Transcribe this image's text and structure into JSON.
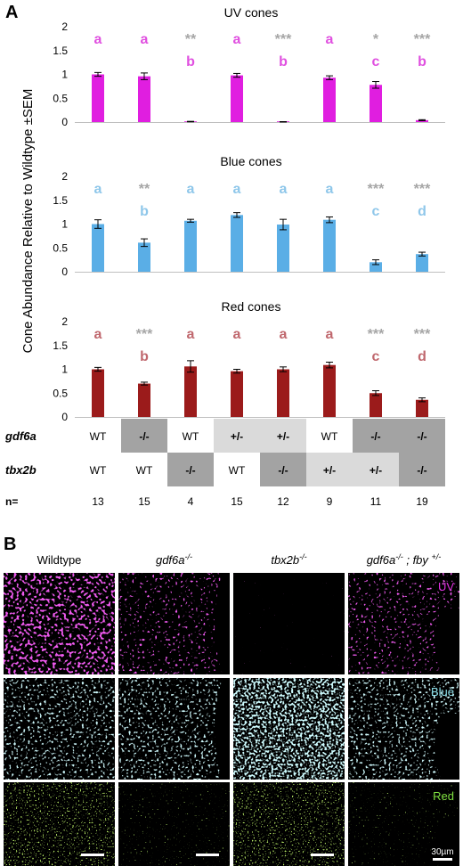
{
  "panel_a_letter": "A",
  "panel_b_letter": "B",
  "y_axis_label": "Cone Abundance Relative to Wildtype ±SEM",
  "colors": {
    "uv": "#e01ee0",
    "blue": "#5aaee6",
    "red": "#9b1b1b",
    "uv_letter": "#e050e0",
    "blue_letter": "#8fc7ea",
    "red_letter": "#c0686e",
    "sig": "#a6a6a6",
    "cell_dark": "#a3a3a3",
    "cell_light": "#dadada"
  },
  "chart_data": [
    {
      "type": "bar",
      "title": "UV cones",
      "ylim": [
        0,
        2
      ],
      "yticks": [
        "0",
        "0.5",
        "1",
        "1.5",
        "2"
      ],
      "values": [
        1.0,
        0.96,
        0.01,
        0.98,
        0.005,
        0.93,
        0.78,
        0.04
      ],
      "errors": [
        0.04,
        0.07,
        0.005,
        0.04,
        0.004,
        0.04,
        0.07,
        0.01
      ],
      "letters": [
        "a",
        "a",
        "b",
        "a",
        "b",
        "a",
        "c",
        "b"
      ],
      "sig": [
        "",
        "",
        "**",
        "",
        "***",
        "",
        "*",
        "***"
      ]
    },
    {
      "type": "bar",
      "title": "Blue cones",
      "ylim": [
        0,
        2
      ],
      "yticks": [
        "0",
        "0.5",
        "1",
        "1.5",
        "2"
      ],
      "values": [
        1.0,
        0.61,
        1.07,
        1.19,
        0.99,
        1.09,
        0.2,
        0.37
      ],
      "errors": [
        0.09,
        0.08,
        0.03,
        0.05,
        0.11,
        0.06,
        0.05,
        0.04
      ],
      "letters": [
        "a",
        "b",
        "a",
        "a",
        "a",
        "a",
        "c",
        "d"
      ],
      "sig": [
        "",
        "**",
        "",
        "",
        "",
        "",
        "***",
        "***"
      ]
    },
    {
      "type": "bar",
      "title": "Red cones",
      "ylim": [
        0,
        2
      ],
      "yticks": [
        "0",
        "0.5",
        "1",
        "1.5",
        "2"
      ],
      "values": [
        1.0,
        0.7,
        1.06,
        0.96,
        1.0,
        1.09,
        0.5,
        0.36
      ],
      "errors": [
        0.04,
        0.03,
        0.12,
        0.04,
        0.05,
        0.06,
        0.05,
        0.04
      ],
      "letters": [
        "a",
        "b",
        "a",
        "a",
        "a",
        "a",
        "c",
        "d"
      ],
      "sig": [
        "",
        "***",
        "",
        "",
        "",
        "",
        "***",
        "***"
      ]
    }
  ],
  "genotype_table": {
    "rows": [
      {
        "label": "gdf6a",
        "cells": [
          "WT",
          "-/-",
          "WT",
          "+/-",
          "+/-",
          "WT",
          "-/-",
          "-/-"
        ],
        "shade": [
          "",
          "dark",
          "",
          "light",
          "light",
          "",
          "dark",
          "dark"
        ]
      },
      {
        "label": "tbx2b",
        "cells": [
          "WT",
          "WT",
          "-/-",
          "WT",
          "-/-",
          "+/-",
          "+/-",
          "-/-"
        ],
        "shade": [
          "",
          "",
          "dark",
          "",
          "dark",
          "light",
          "light",
          "dark"
        ]
      }
    ],
    "n_label": "n=",
    "n_values": [
      "13",
      "15",
      "4",
      "15",
      "12",
      "9",
      "11",
      "19"
    ]
  },
  "panel_b": {
    "columns": [
      {
        "main": "Wildtype",
        "sup": ""
      },
      {
        "main": "gdf6a",
        "sup": "-/-"
      },
      {
        "main": "tbx2b",
        "sup": "-/-"
      },
      {
        "main": "gdf6a",
        "sup": "-/-",
        "main2": " ; fby ",
        "sup2": "+/-"
      }
    ],
    "channel_labels": [
      "UV",
      "Blue",
      "Red"
    ],
    "scale_label": "30µm"
  }
}
